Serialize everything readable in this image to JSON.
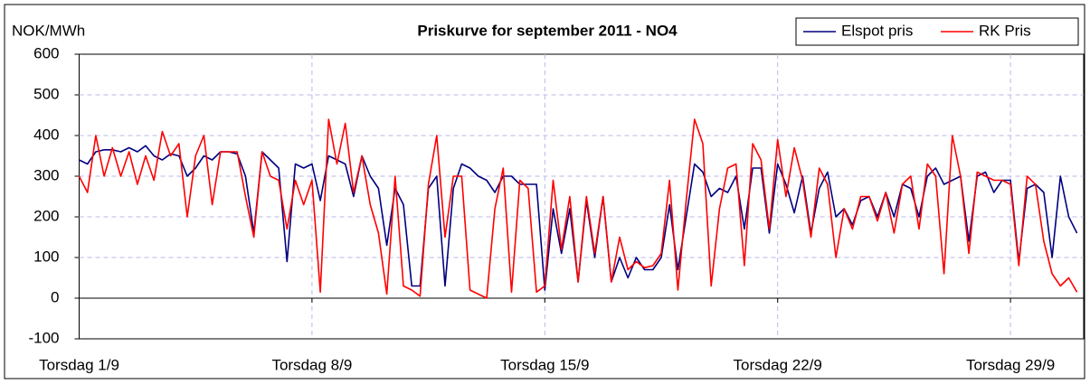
{
  "chart_data": {
    "type": "line",
    "title": "Priskurve for september 2011 - NO4",
    "ylabel": "NOK/MWh",
    "x": [
      0,
      0.25,
      0.5,
      0.75,
      1,
      1.25,
      1.5,
      1.75,
      2,
      2.25,
      2.5,
      2.75,
      3,
      3.25,
      3.5,
      3.75,
      4,
      4.25,
      4.5,
      4.75,
      5,
      5.25,
      5.5,
      5.75,
      6,
      6.25,
      6.5,
      6.75,
      7,
      7.25,
      7.5,
      7.75,
      8,
      8.25,
      8.5,
      8.75,
      9,
      9.25,
      9.5,
      9.75,
      10,
      10.25,
      10.5,
      10.75,
      11,
      11.25,
      11.5,
      11.75,
      12,
      12.25,
      12.5,
      12.75,
      13,
      13.25,
      13.5,
      13.75,
      14,
      14.25,
      14.5,
      14.75,
      15,
      15.25,
      15.5,
      15.75,
      16,
      16.25,
      16.5,
      16.75,
      17,
      17.25,
      17.5,
      17.75,
      18,
      18.25,
      18.5,
      18.75,
      19,
      19.25,
      19.5,
      19.75,
      20,
      20.25,
      20.5,
      20.75,
      21,
      21.25,
      21.5,
      21.75,
      22,
      22.25,
      22.5,
      22.75,
      23,
      23.25,
      23.5,
      23.75,
      24,
      24.25,
      24.5,
      24.75,
      25,
      25.25,
      25.5,
      25.75,
      26,
      26.25,
      26.5,
      26.75,
      27,
      27.25,
      27.5,
      27.75,
      28,
      28.25,
      28.5,
      28.75,
      29,
      29.25,
      29.5,
      29.75,
      30
    ],
    "series": [
      {
        "name": "Elspot pris",
        "color": "#000080",
        "values": [
          340,
          330,
          360,
          365,
          365,
          360,
          370,
          360,
          375,
          350,
          340,
          355,
          350,
          300,
          320,
          350,
          340,
          360,
          360,
          355,
          300,
          160,
          360,
          340,
          320,
          90,
          330,
          320,
          330,
          240,
          350,
          340,
          330,
          250,
          350,
          300,
          270,
          130,
          270,
          230,
          30,
          30,
          270,
          300,
          30,
          270,
          330,
          320,
          300,
          290,
          260,
          300,
          300,
          280,
          280,
          280,
          20,
          220,
          110,
          220,
          40,
          240,
          100,
          250,
          40,
          100,
          50,
          100,
          70,
          70,
          100,
          230,
          70,
          200,
          330,
          310,
          250,
          270,
          260,
          300,
          170,
          320,
          320,
          160,
          330,
          280,
          210,
          300,
          160,
          270,
          310,
          200,
          220,
          180,
          240,
          250,
          200,
          260,
          200,
          280,
          270,
          200,
          300,
          320,
          280,
          290,
          300,
          140,
          300,
          310,
          260,
          290,
          290,
          90,
          270,
          280,
          260,
          100,
          300,
          200,
          160
        ]
      },
      {
        "name": "RK Pris",
        "color": "#ff0000",
        "values": [
          300,
          260,
          400,
          300,
          370,
          300,
          360,
          280,
          350,
          290,
          410,
          350,
          380,
          200,
          350,
          400,
          230,
          360,
          360,
          360,
          250,
          150,
          360,
          300,
          290,
          170,
          290,
          230,
          290,
          15,
          440,
          330,
          430,
          260,
          350,
          230,
          160,
          10,
          300,
          30,
          20,
          5,
          280,
          400,
          150,
          300,
          300,
          20,
          10,
          0,
          220,
          320,
          15,
          290,
          270,
          15,
          30,
          290,
          120,
          250,
          40,
          250,
          110,
          250,
          40,
          150,
          70,
          90,
          75,
          80,
          110,
          290,
          20,
          240,
          440,
          380,
          30,
          220,
          320,
          330,
          80,
          380,
          340,
          170,
          390,
          250,
          370,
          290,
          150,
          320,
          280,
          100,
          220,
          170,
          250,
          250,
          190,
          260,
          160,
          280,
          300,
          170,
          330,
          300,
          60,
          400,
          300,
          110,
          310,
          300,
          290,
          290,
          280,
          80,
          300,
          280,
          140,
          60,
          30,
          50,
          15
        ]
      }
    ],
    "xlim": [
      0,
      30.2
    ],
    "xticks": [
      {
        "value": 0,
        "label": "Torsdag 1/9"
      },
      {
        "value": 7,
        "label": "Torsdag 8/9"
      },
      {
        "value": 14,
        "label": "Torsdag 15/9"
      },
      {
        "value": 21,
        "label": "Torsdag 22/9"
      },
      {
        "value": 28,
        "label": "Torsdag 29/9"
      }
    ],
    "ylim": [
      -100,
      600
    ],
    "yticks": [
      -100,
      0,
      100,
      200,
      300,
      400,
      500,
      600
    ],
    "grid": true,
    "legend": "top-right"
  }
}
